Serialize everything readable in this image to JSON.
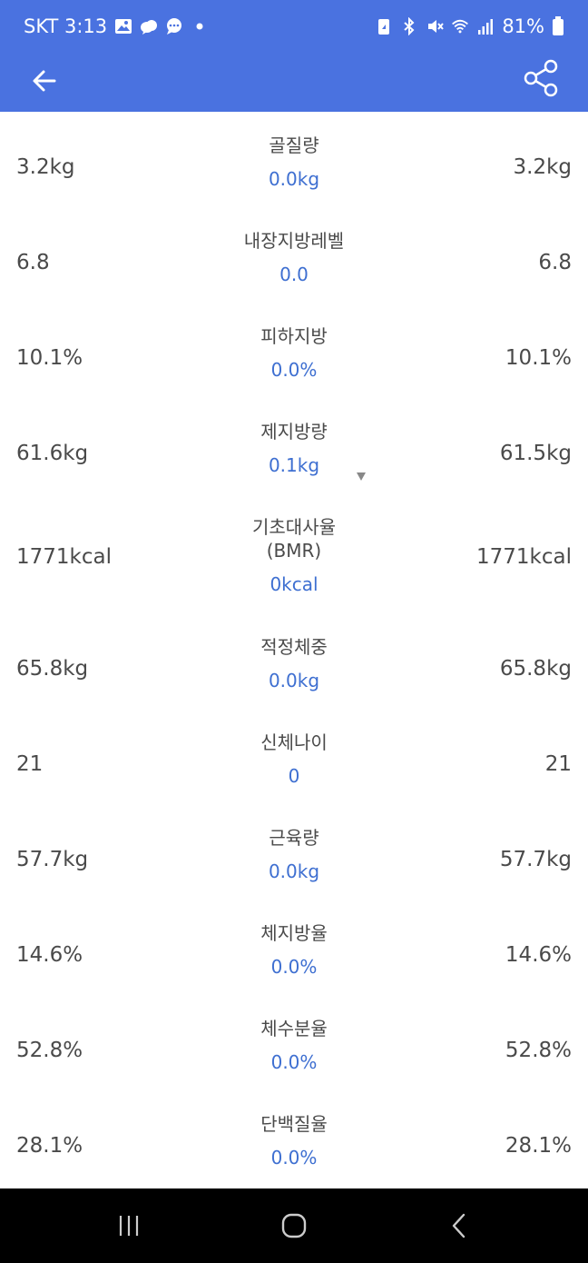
{
  "status_bar": {
    "carrier_time": "SKT 3:13",
    "battery": "81%",
    "left_icons": [
      "gallery-icon",
      "cloud-icon",
      "chat-icon",
      "dot-icon"
    ],
    "right_icons": [
      "battery-saver-icon",
      "bluetooth-icon",
      "mute-icon",
      "wifi-icon",
      "signal-icon",
      "battery-icon"
    ]
  },
  "app_bar": {
    "back_icon": "arrow-left-icon",
    "share_icon": "share-icon",
    "color": "#4a72e0"
  },
  "rows": [
    {
      "name": "골질량",
      "diff": "0.0kg",
      "left": "3.2kg",
      "right": "3.2kg"
    },
    {
      "name": "내장지방레벨",
      "diff": "0.0",
      "left": "6.8",
      "right": "6.8"
    },
    {
      "name": "피하지방",
      "diff": "0.0%",
      "left": "10.1%",
      "right": "10.1%"
    },
    {
      "name": "제지방량",
      "diff": "0.1kg",
      "left": "61.6kg",
      "right": "61.5kg",
      "trend": "down"
    },
    {
      "name": "기초대사율\n(BMR)",
      "name_line1": "기초대사율",
      "name_line2": "(BMR)",
      "diff": "0kcal",
      "left": "1771kcal",
      "right": "1771kcal"
    },
    {
      "name": "적정체중",
      "diff": "0.0kg",
      "left": "65.8kg",
      "right": "65.8kg"
    },
    {
      "name": "신체나이",
      "diff": "0",
      "left": "21",
      "right": "21"
    },
    {
      "name": "근육량",
      "diff": "0.0kg",
      "left": "57.7kg",
      "right": "57.7kg"
    },
    {
      "name": "체지방율",
      "diff": "0.0%",
      "left": "14.6%",
      "right": "14.6%"
    },
    {
      "name": "체수분율",
      "diff": "0.0%",
      "left": "52.8%",
      "right": "52.8%"
    },
    {
      "name": "단백질율",
      "diff": "0.0%",
      "left": "28.1%",
      "right": "28.1%"
    }
  ],
  "nav_bar": {
    "recents_icon": "recents-icon",
    "home_icon": "home-icon",
    "back_icon": "nav-back-icon"
  }
}
